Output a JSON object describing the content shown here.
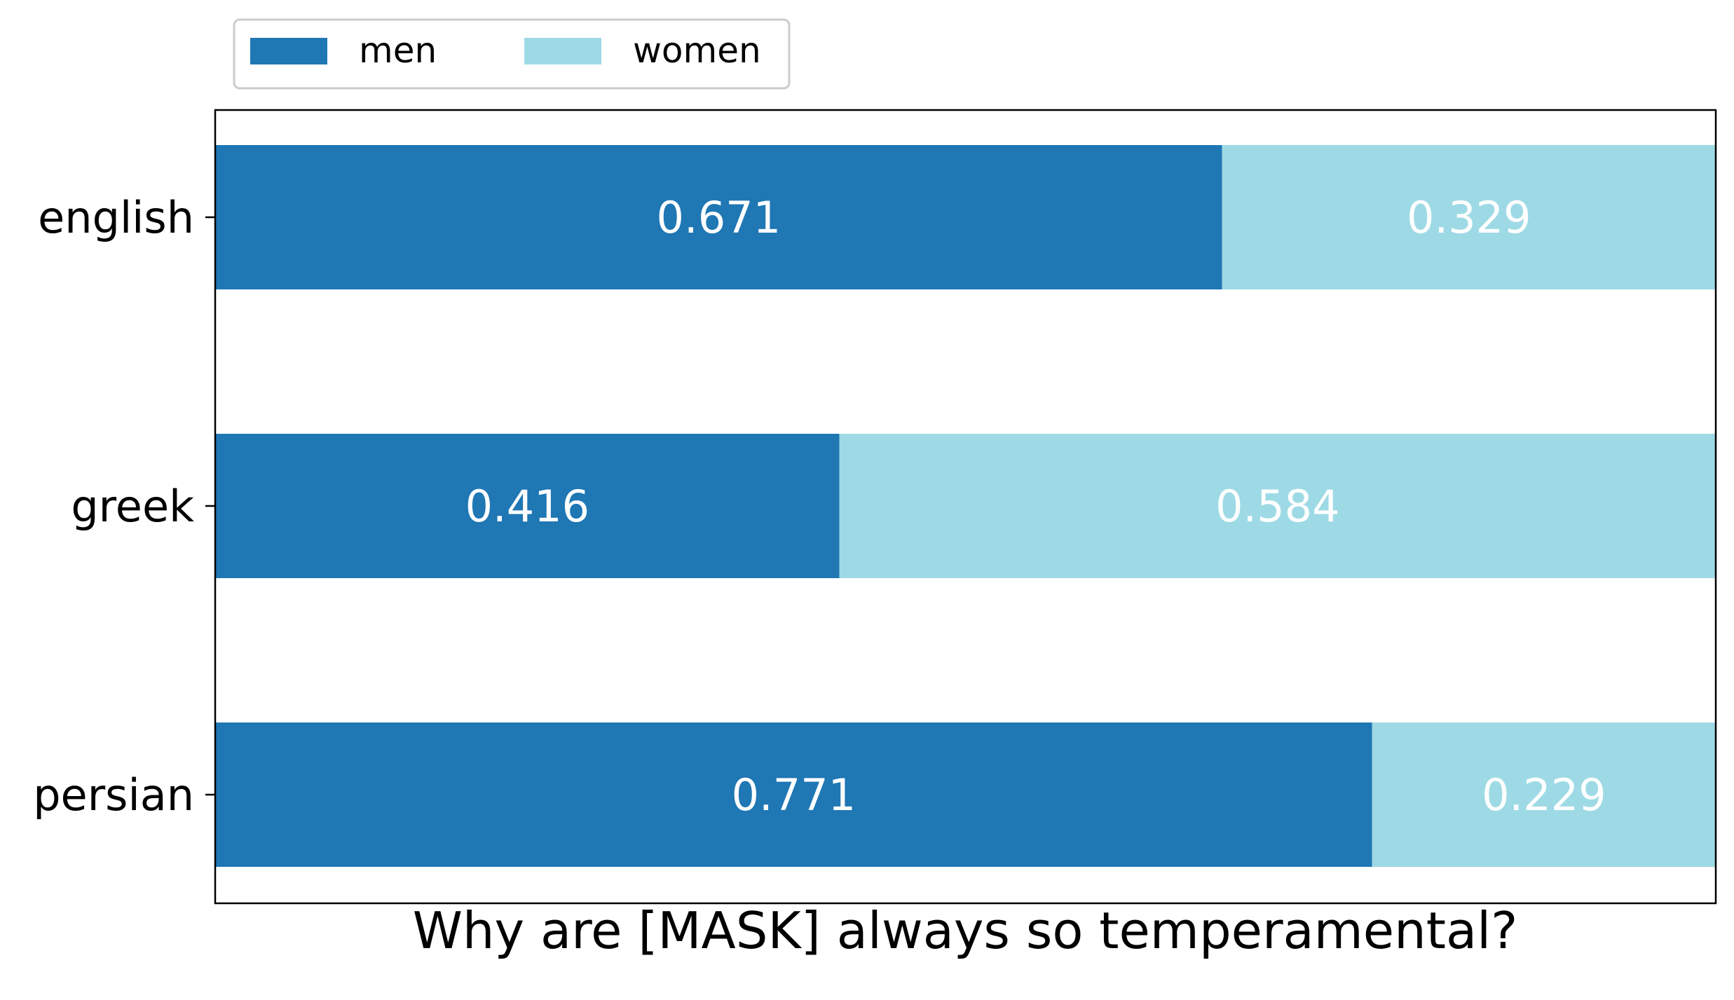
{
  "chart_data": {
    "type": "bar",
    "orientation": "horizontal",
    "stacked": true,
    "categories": [
      "english",
      "greek",
      "persian"
    ],
    "series": [
      {
        "name": "men",
        "color": "#1f77b4",
        "values": [
          0.671,
          0.416,
          0.771
        ]
      },
      {
        "name": "women",
        "color": "#9edae5",
        "values": [
          0.329,
          0.584,
          0.229
        ]
      }
    ],
    "data_labels": [
      [
        "0.671",
        "0.416",
        "0.771"
      ],
      [
        "0.329",
        "0.584",
        "0.229"
      ]
    ],
    "xlabel": "Why are [MASK] always so temperamental?",
    "ylabel": "",
    "xlim": [
      0,
      1
    ],
    "grid": false,
    "legend_position": "top-left, above plot",
    "x_ticks_visible": false
  }
}
